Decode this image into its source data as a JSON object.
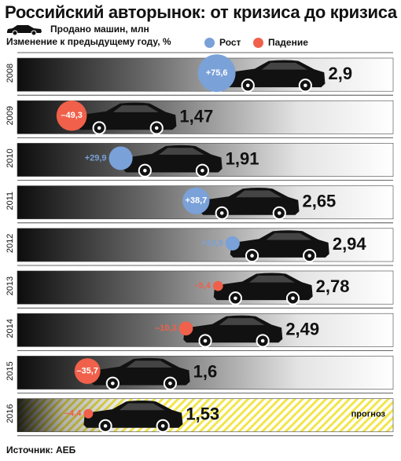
{
  "header": {
    "title": "Российский авторынок: от кризиса до кризиса",
    "legend_sold": "Продано машин, млн",
    "legend_change": "Изменение к предыдущему году, %",
    "legend_rise": "Рост",
    "legend_fall": "Падение"
  },
  "colors": {
    "rise": "#7aa1d8",
    "fall": "#f0604a",
    "car": "#111111",
    "forecast_stripe": "#f2e64a"
  },
  "footer": {
    "source": "Источник: АЕБ"
  },
  "chart_data": {
    "type": "bar",
    "title": "Российский авторынок: от кризиса до кризиса",
    "xlabel": "",
    "ylabel": "",
    "categories": [
      "2008",
      "2009",
      "2010",
      "2011",
      "2012",
      "2013",
      "2014",
      "2015",
      "2016"
    ],
    "series": [
      {
        "name": "Продано машин, млн",
        "values": [
          2.9,
          1.47,
          1.91,
          2.65,
          2.94,
          2.78,
          2.49,
          1.6,
          1.53
        ],
        "labels": [
          "2,9",
          "1,47",
          "1,91",
          "2,65",
          "2,94",
          "2,78",
          "2,49",
          "1,6",
          "1,53"
        ]
      },
      {
        "name": "Изменение к предыдущему году, %",
        "values": [
          75.6,
          -49.3,
          29.9,
          38.7,
          10.9,
          -5.4,
          -10.3,
          -35.7,
          -4.4
        ],
        "labels": [
          "+75,6",
          "–49,3",
          "+29,9",
          "+38,7",
          "+10,9",
          "–5,4",
          "–10,3",
          "–35,7",
          "–4,4"
        ]
      }
    ],
    "xlim": [
      0,
      3.1
    ],
    "forecast": {
      "category": "2016",
      "label": "прогноз"
    },
    "grid": false,
    "legend": "top-left"
  }
}
